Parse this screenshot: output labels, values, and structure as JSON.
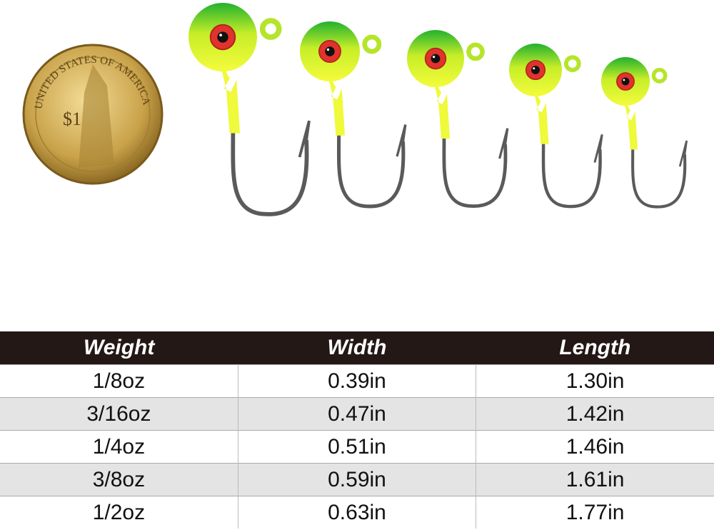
{
  "coin": {
    "legend": "UNITED STATES OF AMERICA",
    "denomination": "$1"
  },
  "table": {
    "header": [
      "Weight",
      "Width",
      "Length"
    ],
    "rows": [
      [
        "1/8oz",
        "0.39in",
        "1.30in"
      ],
      [
        "3/16oz",
        "0.47in",
        "1.42in"
      ],
      [
        "1/4oz",
        "0.51in",
        "1.46in"
      ],
      [
        "3/8oz",
        "0.59in",
        "1.61in"
      ],
      [
        "1/2oz",
        "0.63in",
        "1.77in"
      ]
    ]
  }
}
